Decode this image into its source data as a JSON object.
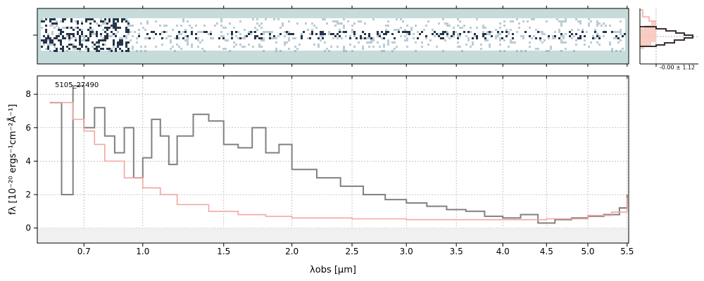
{
  "chart_data": [
    {
      "type": "image",
      "panel": "2D spectrum",
      "description_tag": "spectrum-2d",
      "colors": {
        "background": "#c5dcdb",
        "trace": "#1a2a40",
        "empty": "#ffffff"
      }
    },
    {
      "type": "line",
      "panel": "1D spectrum",
      "object_label": "5105_27490",
      "xlabel": "λobs [μm]",
      "ylabel": "fλ [10⁻²⁰ ergs⁻¹cm⁻²Å⁻¹]",
      "xlim": [
        0.5,
        5.52
      ],
      "ylim": [
        -0.9,
        9.1
      ],
      "xscale": "sqrt",
      "grid": true,
      "xticks": [
        0.7,
        1.0,
        1.5,
        2.0,
        2.5,
        3.0,
        3.5,
        4.0,
        4.5,
        5.0,
        5.5
      ],
      "xticklabels": [
        "0.7",
        "1.0",
        "1.5",
        "2.0",
        "2.5",
        "3.0",
        "3.5",
        "4.0",
        "4.5",
        "5.0",
        "5.5"
      ],
      "yticks": [
        0,
        2,
        4,
        6,
        8
      ],
      "yticklabels": [
        "0",
        "2",
        "4",
        "6",
        "8"
      ],
      "series": [
        {
          "role": "flux",
          "color": "#808080",
          "x": [
            0.55,
            0.6,
            0.65,
            0.7,
            0.75,
            0.8,
            0.85,
            0.9,
            0.95,
            1.0,
            1.05,
            1.1,
            1.15,
            1.2,
            1.3,
            1.4,
            1.5,
            1.6,
            1.7,
            1.8,
            1.9,
            2.0,
            2.2,
            2.4,
            2.6,
            2.8,
            3.0,
            3.2,
            3.4,
            3.6,
            3.8,
            4.0,
            4.2,
            4.4,
            4.6,
            4.8,
            5.0,
            5.2,
            5.4,
            5.5
          ],
          "y": [
            7.5,
            2.0,
            8.5,
            6.0,
            7.2,
            5.5,
            4.5,
            6.0,
            3.0,
            4.2,
            6.5,
            5.5,
            3.8,
            5.5,
            6.8,
            6.4,
            5.0,
            4.8,
            6.0,
            4.5,
            5.0,
            3.5,
            3.0,
            2.5,
            2.0,
            1.7,
            1.5,
            1.3,
            1.1,
            1.0,
            0.7,
            0.6,
            0.8,
            0.3,
            0.5,
            0.6,
            0.7,
            0.8,
            1.2,
            2.0
          ]
        },
        {
          "role": "model",
          "color": "#f4a6a0",
          "x": [
            0.55,
            0.65,
            0.7,
            0.75,
            0.8,
            0.9,
            1.0,
            1.1,
            1.2,
            1.4,
            1.6,
            1.8,
            2.0,
            2.5,
            3.0,
            3.5,
            4.0,
            4.5,
            5.0,
            5.3,
            5.5
          ],
          "y": [
            7.5,
            6.5,
            5.8,
            5.0,
            4.0,
            3.0,
            2.4,
            2.0,
            1.4,
            1.0,
            0.8,
            0.7,
            0.6,
            0.55,
            0.5,
            0.5,
            0.5,
            0.55,
            0.75,
            0.95,
            1.8
          ]
        }
      ]
    },
    {
      "type": "histogram",
      "panel": "residual distribution",
      "label": "-0.00 ± 1.12"
    }
  ]
}
